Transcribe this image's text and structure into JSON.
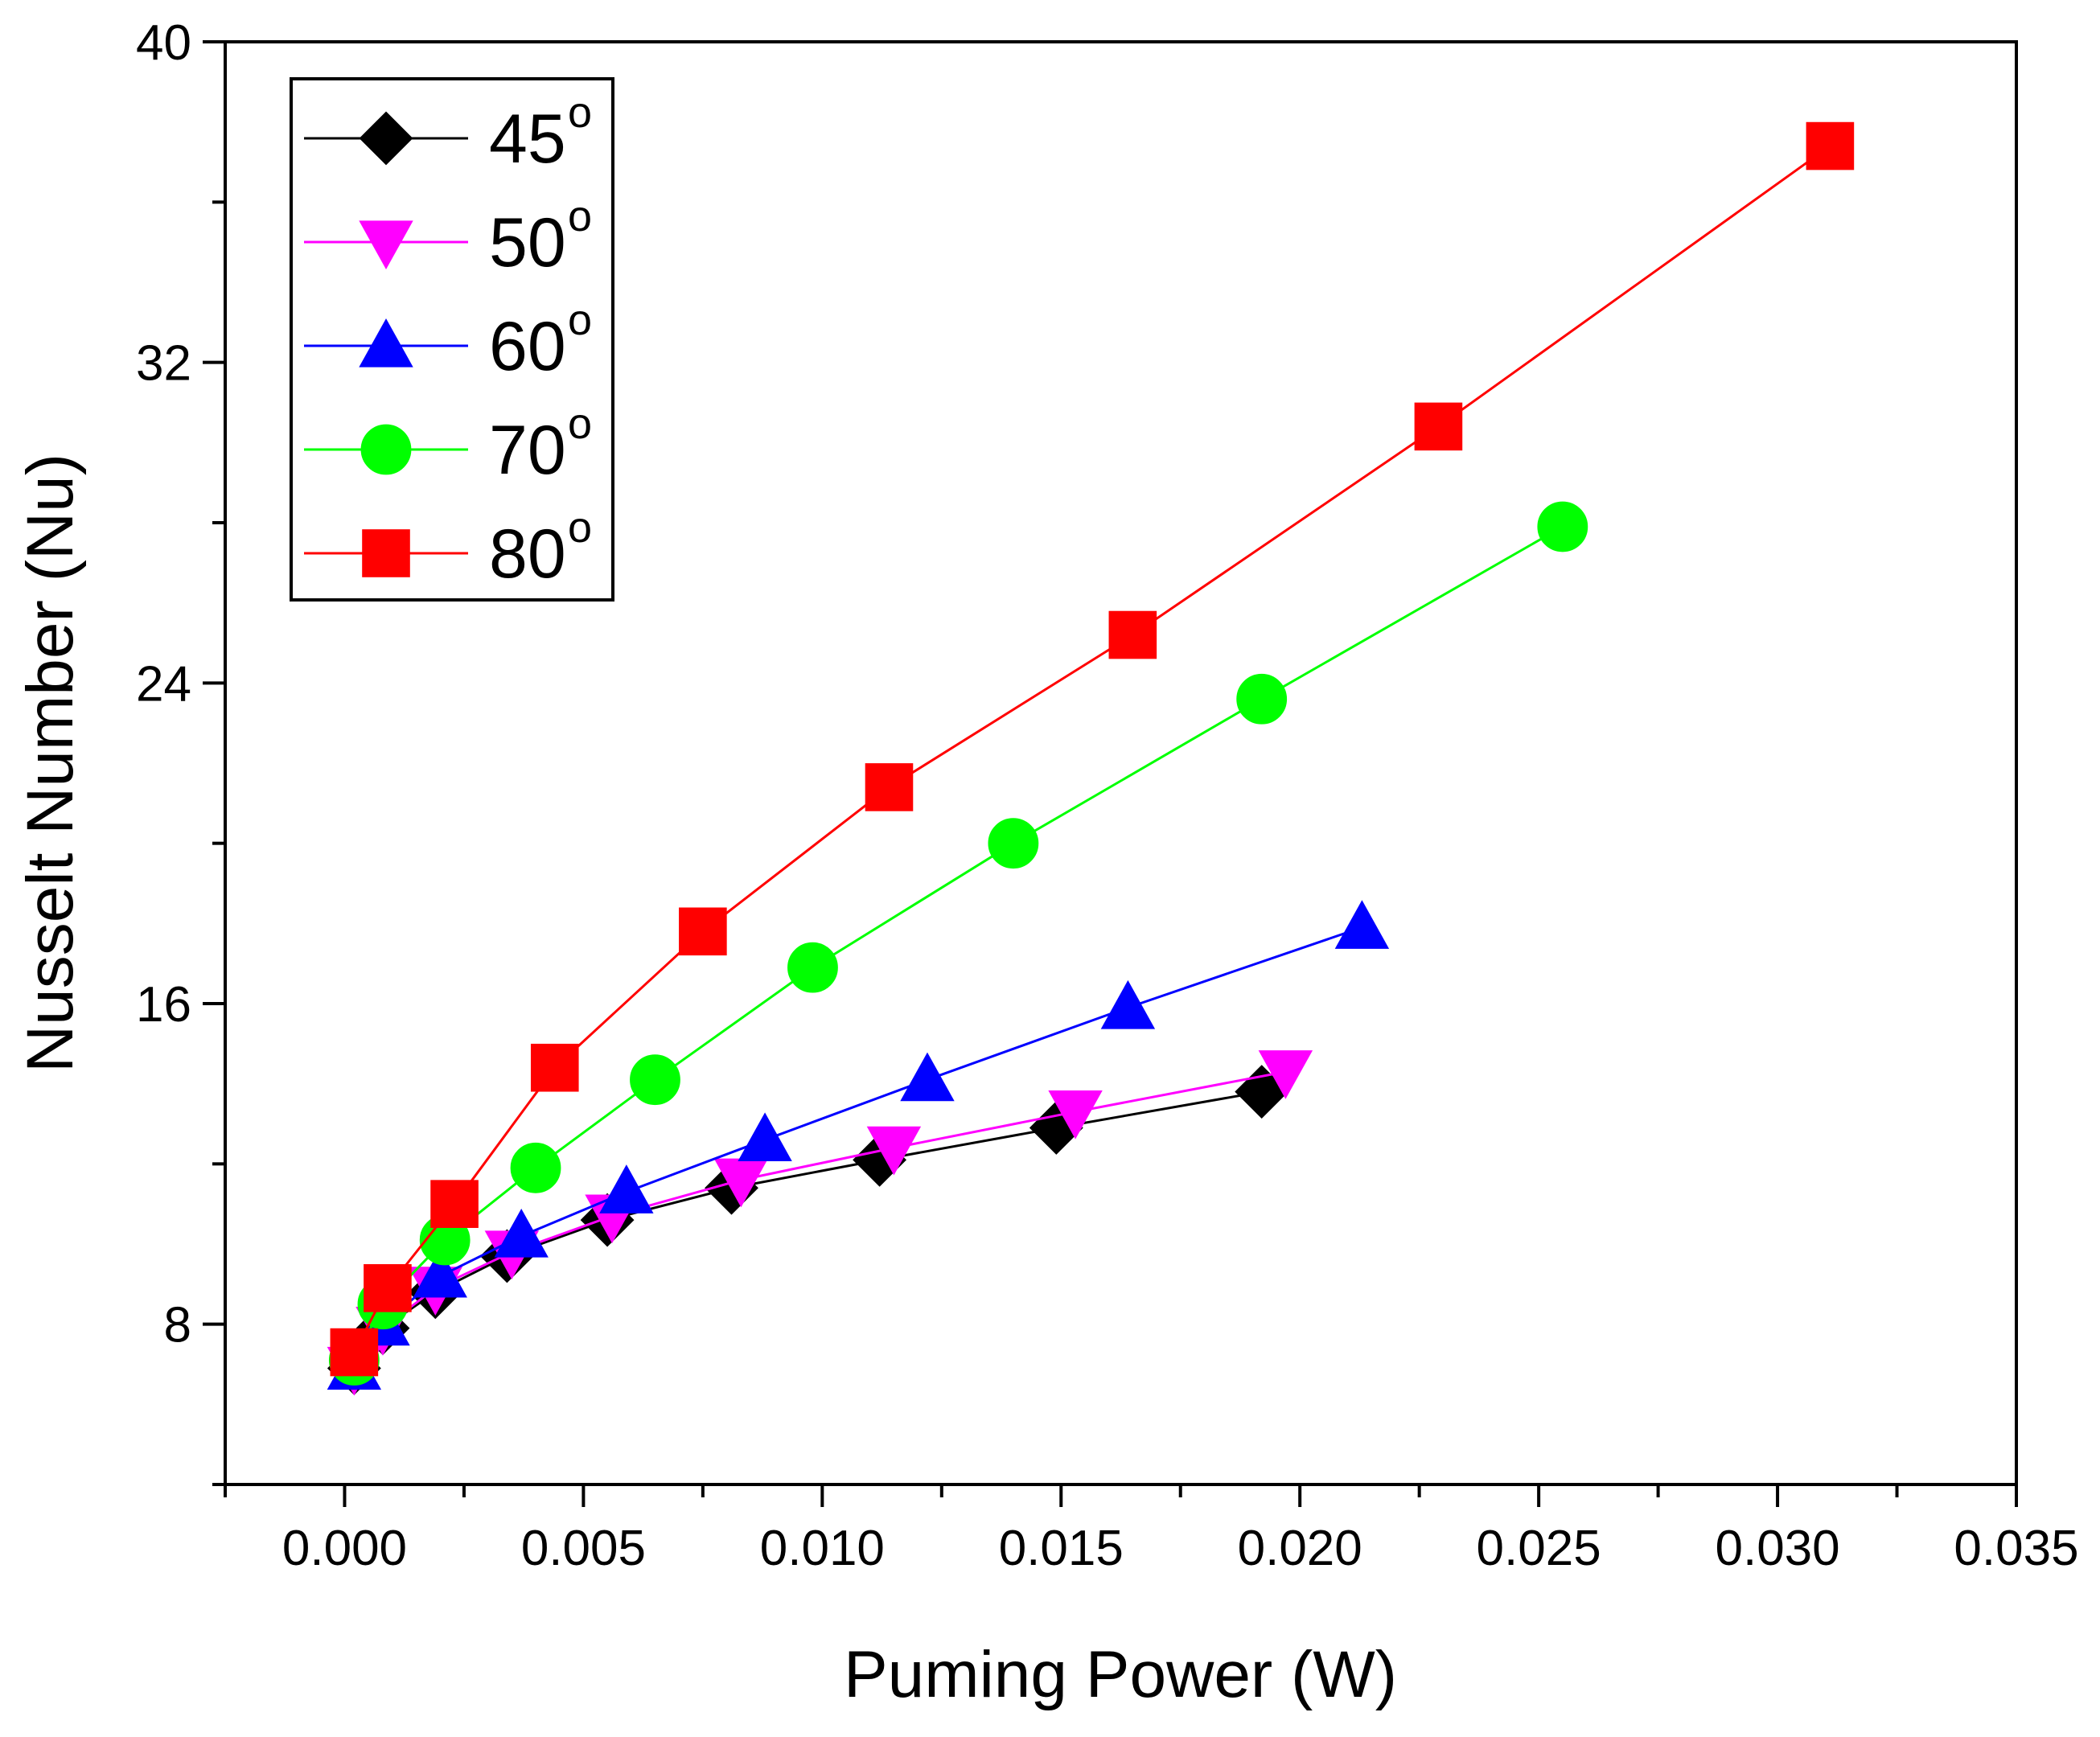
{
  "chart_data": {
    "type": "line",
    "title": "",
    "xlabel": "Puming Power (W)",
    "ylabel": "Nusselt Number (Nu)",
    "xlim": [
      -0.0025,
      0.035
    ],
    "ylim": [
      4,
      40
    ],
    "xticks": [
      "0.000",
      "0.005",
      "0.010",
      "0.015",
      "0.020",
      "0.025",
      "0.030",
      "0.035"
    ],
    "yticks": [
      "8",
      "16",
      "24",
      "32",
      "40"
    ],
    "legend_position": "top-left",
    "series": [
      {
        "name": "45",
        "name_sup": "o",
        "color": "#000000",
        "marker": "diamond",
        "x": [
          0.0002,
          0.0008,
          0.0019,
          0.0034,
          0.0055,
          0.0081,
          0.0112,
          0.0149,
          0.0192
        ],
        "y": [
          6.9,
          7.9,
          8.8,
          9.7,
          10.6,
          11.4,
          12.1,
          12.9,
          13.8
        ]
      },
      {
        "name": "50",
        "name_sup": "o",
        "color": "#ff00ff",
        "marker": "triangle-down",
        "x": [
          0.0002,
          0.0008,
          0.0019,
          0.0035,
          0.0056,
          0.0083,
          0.0115,
          0.0153,
          0.0197
        ],
        "y": [
          6.9,
          7.9,
          8.9,
          9.8,
          10.7,
          11.6,
          12.4,
          13.3,
          14.3
        ]
      },
      {
        "name": "60",
        "name_sup": "o",
        "color": "#0000ff",
        "marker": "triangle-up",
        "x": [
          0.0002,
          0.0008,
          0.002,
          0.0037,
          0.0059,
          0.0088,
          0.0122,
          0.0164,
          0.0213
        ],
        "y": [
          6.9,
          8.0,
          9.2,
          10.2,
          11.3,
          12.6,
          14.1,
          15.9,
          17.9
        ]
      },
      {
        "name": "70",
        "name_sup": "o",
        "color": "#00ff00",
        "marker": "circle",
        "x": [
          0.0002,
          0.0008,
          0.0021,
          0.004,
          0.0065,
          0.0098,
          0.014,
          0.0192,
          0.0255
        ],
        "y": [
          7.1,
          8.5,
          10.1,
          11.9,
          14.1,
          16.9,
          20.0,
          23.6,
          27.9
        ]
      },
      {
        "name": "80",
        "name_sup": "o",
        "color": "#ff0000",
        "marker": "square",
        "x": [
          0.0002,
          0.0009,
          0.0023,
          0.0044,
          0.0075,
          0.0114,
          0.0165,
          0.0229,
          0.0311
        ],
        "y": [
          7.3,
          8.9,
          11.0,
          14.4,
          17.8,
          21.4,
          25.2,
          30.4,
          37.4
        ]
      }
    ]
  }
}
